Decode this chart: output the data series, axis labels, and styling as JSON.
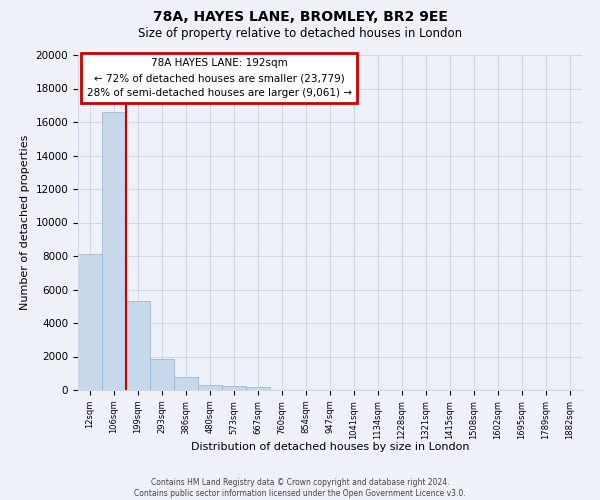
{
  "title": "78A, HAYES LANE, BROMLEY, BR2 9EE",
  "subtitle": "Size of property relative to detached houses in London",
  "xlabel": "Distribution of detached houses by size in London",
  "ylabel": "Number of detached properties",
  "bar_labels": [
    "12sqm",
    "106sqm",
    "199sqm",
    "293sqm",
    "386sqm",
    "480sqm",
    "573sqm",
    "667sqm",
    "760sqm",
    "854sqm",
    "947sqm",
    "1041sqm",
    "1134sqm",
    "1228sqm",
    "1321sqm",
    "1415sqm",
    "1508sqm",
    "1602sqm",
    "1695sqm",
    "1789sqm",
    "1882sqm"
  ],
  "bar_values": [
    8100,
    16600,
    5300,
    1850,
    800,
    320,
    210,
    150,
    0,
    0,
    0,
    0,
    0,
    0,
    0,
    0,
    0,
    0,
    0,
    0,
    0
  ],
  "bar_color": "#c8d8eb",
  "bar_edge_color": "#a0b8d0",
  "property_line_label": "78A HAYES LANE: 192sqm",
  "annotation_line1": "← 72% of detached houses are smaller (23,779)",
  "annotation_line2": "28% of semi-detached houses are larger (9,061) →",
  "annotation_box_color": "#ffffff",
  "annotation_box_edge": "#cc0000",
  "line_color": "#cc0000",
  "ylim": [
    0,
    20000
  ],
  "yticks": [
    0,
    2000,
    4000,
    6000,
    8000,
    10000,
    12000,
    14000,
    16000,
    18000,
    20000
  ],
  "footer1": "Contains HM Land Registry data © Crown copyright and database right 2024.",
  "footer2": "Contains public sector information licensed under the Open Government Licence v3.0.",
  "bg_color": "#eef2f8",
  "grid_color": "#d0d8e8",
  "plot_bg_color": "#eef2f8"
}
